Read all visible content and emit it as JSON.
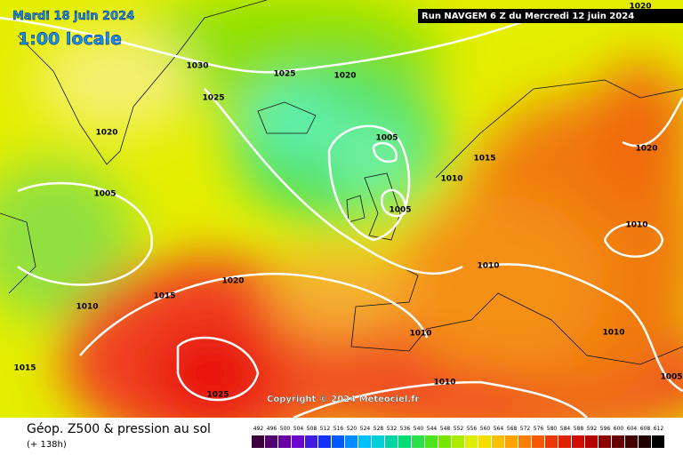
{
  "header": {
    "date": "Mardi 18 juin 2024",
    "time": "1:00 locale",
    "run": "Run NAVGEM 6 Z du Mercredi 12 juin 2024"
  },
  "isobars": [
    "1020",
    "1030",
    "1025",
    "1020",
    "1025",
    "1020",
    "1005",
    "1015",
    "1010",
    "1020",
    "1005",
    "1005",
    "1010",
    "1010",
    "1020",
    "1015",
    "1010",
    "1010",
    "1010",
    "1015",
    "1010",
    "1025",
    "1005"
  ],
  "copyright": "Copyright © 2024 Meteociel.fr",
  "footer": {
    "title": "Géop. Z500 & pression au sol",
    "subtitle": "(+ 138h)"
  },
  "legend": [
    "492",
    "496",
    "500",
    "504",
    "508",
    "512",
    "516",
    "520",
    "524",
    "528",
    "532",
    "536",
    "540",
    "544",
    "548",
    "552",
    "556",
    "560",
    "564",
    "568",
    "572",
    "576",
    "580",
    "584",
    "588",
    "592",
    "596",
    "600",
    "604",
    "608",
    "612"
  ]
}
